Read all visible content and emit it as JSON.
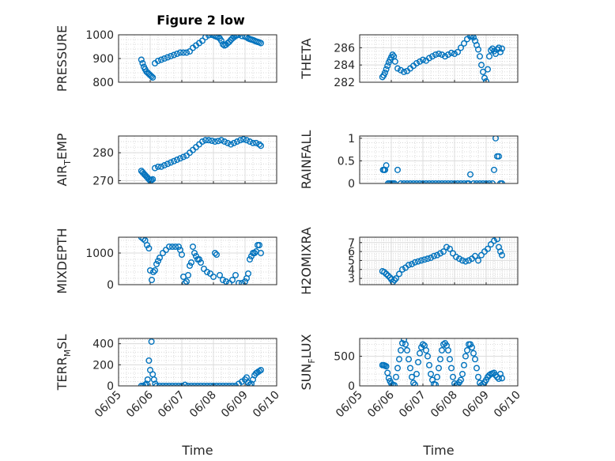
{
  "figure": {
    "title": "Figure 2 low"
  },
  "chart_data": [
    {
      "type": "scatter",
      "xlabel": "",
      "ylabel": "PRESSURE",
      "xlim": [
        "06/05",
        "06/10"
      ],
      "ylim": [
        800,
        1000
      ],
      "yticks": [
        800,
        900,
        1000
      ],
      "yticklabels": [
        "800",
        "900",
        "1000"
      ],
      "xticks": [
        "06/05",
        "06/06",
        "06/07",
        "06/08",
        "06/09",
        "06/10"
      ],
      "xticklabels": [],
      "grid": true,
      "minor_grid": true,
      "x": [
        0.72,
        0.76,
        0.8,
        0.84,
        0.88,
        0.92,
        0.96,
        1.0,
        1.04,
        1.08,
        1.15,
        1.25,
        1.35,
        1.45,
        1.55,
        1.65,
        1.75,
        1.85,
        1.95,
        2.05,
        2.15,
        2.25,
        2.35,
        2.45,
        2.55,
        2.65,
        2.75,
        2.85,
        2.95,
        3.0,
        3.05,
        3.1,
        3.15,
        3.2,
        3.25,
        3.3,
        3.35,
        3.4,
        3.45,
        3.5,
        3.55,
        3.6,
        3.65,
        3.7,
        3.75,
        3.8,
        3.9,
        4.0,
        4.05,
        4.1,
        4.15,
        4.2,
        4.25,
        4.3,
        4.35,
        4.4,
        4.45,
        4.5
      ],
      "y": [
        895,
        880,
        865,
        855,
        845,
        840,
        835,
        830,
        825,
        820,
        880,
        890,
        895,
        900,
        905,
        910,
        915,
        920,
        925,
        925,
        925,
        930,
        945,
        955,
        965,
        975,
        990,
        998,
        1000,
        998,
        995,
        992,
        990,
        985,
        975,
        960,
        955,
        958,
        965,
        970,
        978,
        985,
        990,
        995,
        998,
        1000,
        995,
        992,
        990,
        985,
        982,
        980,
        978,
        975,
        972,
        970,
        968,
        965
      ]
    },
    {
      "type": "scatter",
      "xlabel": "",
      "ylabel": "THETA",
      "xlim": [
        "06/05",
        "06/10"
      ],
      "ylim": [
        282,
        287.5
      ],
      "yticks": [
        282,
        284,
        286
      ],
      "yticklabels": [
        "282",
        "284",
        "286"
      ],
      "xticks": [
        "06/05",
        "06/06",
        "06/07",
        "06/08",
        "06/09",
        "06/10"
      ],
      "xticklabels": [],
      "grid": true,
      "minor_grid": true,
      "x": [
        0.72,
        0.76,
        0.8,
        0.84,
        0.88,
        0.92,
        0.96,
        1.0,
        1.04,
        1.08,
        1.12,
        1.2,
        1.3,
        1.4,
        1.5,
        1.6,
        1.7,
        1.8,
        1.9,
        2.0,
        2.1,
        2.2,
        2.3,
        2.4,
        2.5,
        2.6,
        2.7,
        2.8,
        2.9,
        3.0,
        3.1,
        3.2,
        3.3,
        3.4,
        3.5,
        3.55,
        3.6,
        3.65,
        3.7,
        3.75,
        3.8,
        3.85,
        3.9,
        3.95,
        4.0,
        4.05,
        4.1,
        4.15,
        4.2,
        4.25,
        4.3,
        4.35,
        4.4,
        4.45,
        4.5
      ],
      "y": [
        282.6,
        282.8,
        283.1,
        283.5,
        283.9,
        284.3,
        284.6,
        284.9,
        285.2,
        285.0,
        284.4,
        283.6,
        283.4,
        283.2,
        283.3,
        283.6,
        283.9,
        284.2,
        284.4,
        284.6,
        284.5,
        284.8,
        285.0,
        285.2,
        285.3,
        285.2,
        285.0,
        285.2,
        285.4,
        285.3,
        285.5,
        286.0,
        286.5,
        287.0,
        287.3,
        287.4,
        287.2,
        286.8,
        286.3,
        285.8,
        285.0,
        284.0,
        283.2,
        282.5,
        282.1,
        283.5,
        285.0,
        285.7,
        285.9,
        285.6,
        285.3,
        285.8,
        286.0,
        285.5,
        285.9
      ]
    },
    {
      "type": "scatter",
      "xlabel": "",
      "ylabel": "AIR_TEMP",
      "xlim": [
        "06/05",
        "06/10"
      ],
      "ylim": [
        269,
        286
      ],
      "yticks": [
        270,
        280
      ],
      "yticklabels": [
        "270",
        "280"
      ],
      "xticks": [
        "06/05",
        "06/06",
        "06/07",
        "06/08",
        "06/09",
        "06/10"
      ],
      "xticklabels": [],
      "grid": true,
      "minor_grid": true,
      "x": [
        0.72,
        0.76,
        0.8,
        0.84,
        0.88,
        0.92,
        0.96,
        1.0,
        1.04,
        1.08,
        1.15,
        1.25,
        1.35,
        1.45,
        1.55,
        1.65,
        1.75,
        1.85,
        1.95,
        2.05,
        2.15,
        2.25,
        2.35,
        2.45,
        2.55,
        2.65,
        2.75,
        2.85,
        2.95,
        3.05,
        3.15,
        3.25,
        3.35,
        3.45,
        3.55,
        3.65,
        3.75,
        3.85,
        3.95,
        4.05,
        4.15,
        4.25,
        4.35,
        4.45,
        4.5
      ],
      "y": [
        273.5,
        273.0,
        272.5,
        272.0,
        271.5,
        271.0,
        270.5,
        270.0,
        270.2,
        270.5,
        274.5,
        275.0,
        275.0,
        275.5,
        276.0,
        276.5,
        277.0,
        277.5,
        278.0,
        278.5,
        279.0,
        280.0,
        281.0,
        282.0,
        283.0,
        284.0,
        284.5,
        284.5,
        284.3,
        284.0,
        284.2,
        284.5,
        284.0,
        283.5,
        283.0,
        283.5,
        284.0,
        284.5,
        284.8,
        284.5,
        284.0,
        283.5,
        283.5,
        283.0,
        282.5
      ]
    },
    {
      "type": "scatter",
      "xlabel": "",
      "ylabel": "RAINFALL",
      "xlim": [
        "06/05",
        "06/10"
      ],
      "ylim": [
        0,
        1.05
      ],
      "yticks": [
        0,
        0.5,
        1
      ],
      "yticklabels": [
        "0",
        "0.5",
        "1"
      ],
      "xticks": [
        "06/05",
        "06/06",
        "06/07",
        "06/08",
        "06/09",
        "06/10"
      ],
      "xticklabels": [],
      "grid": true,
      "minor_grid": true,
      "x": [
        0.74,
        0.78,
        0.8,
        0.84,
        0.9,
        0.95,
        1.0,
        1.05,
        1.1,
        1.2,
        1.3,
        1.4,
        1.5,
        1.6,
        1.7,
        1.8,
        1.9,
        2.0,
        2.1,
        2.2,
        2.3,
        2.4,
        2.5,
        2.6,
        2.7,
        2.8,
        2.9,
        3.0,
        3.1,
        3.2,
        3.3,
        3.4,
        3.45,
        3.5,
        3.6,
        3.7,
        3.8,
        3.9,
        4.0,
        4.1,
        4.2,
        4.25,
        4.3,
        4.35,
        4.4,
        4.45,
        4.5
      ],
      "y": [
        0.3,
        0.3,
        0.3,
        0.4,
        0,
        0,
        0,
        0,
        0,
        0.3,
        0,
        0,
        0,
        0,
        0,
        0,
        0,
        0,
        0,
        0,
        0,
        0,
        0,
        0,
        0,
        0,
        0,
        0,
        0,
        0,
        0,
        0,
        0,
        0.2,
        0,
        0,
        0,
        0,
        0,
        0,
        0,
        0.3,
        1.0,
        0.6,
        0.6,
        0,
        0
      ]
    },
    {
      "type": "scatter",
      "xlabel": "",
      "ylabel": "MIXDEPTH",
      "xlim": [
        "06/05",
        "06/10"
      ],
      "ylim": [
        0,
        1500
      ],
      "yticks": [
        0,
        1000
      ],
      "yticklabels": [
        "0",
        "1000"
      ],
      "xticks": [
        "06/05",
        "06/06",
        "06/07",
        "06/08",
        "06/09",
        "06/10"
      ],
      "xticklabels": [],
      "grid": true,
      "minor_grid": true,
      "x": [
        0.72,
        0.78,
        0.84,
        0.9,
        0.96,
        1.0,
        1.05,
        1.1,
        1.15,
        1.2,
        1.25,
        1.3,
        1.4,
        1.5,
        1.6,
        1.7,
        1.8,
        1.9,
        1.95,
        2.0,
        2.05,
        2.1,
        2.15,
        2.2,
        2.25,
        2.3,
        2.35,
        2.4,
        2.45,
        2.5,
        2.55,
        2.6,
        2.7,
        2.8,
        2.9,
        3.0,
        3.05,
        3.1,
        3.2,
        3.3,
        3.4,
        3.5,
        3.6,
        3.7,
        3.8,
        3.9,
        4.0,
        4.05,
        4.1,
        4.15,
        4.2,
        4.25,
        4.3,
        4.35,
        4.4,
        4.45,
        4.5
      ],
      "y": [
        1500,
        1450,
        1400,
        1250,
        1150,
        450,
        150,
        400,
        450,
        650,
        750,
        850,
        1000,
        1100,
        1200,
        1200,
        1200,
        1200,
        1100,
        950,
        250,
        50,
        100,
        300,
        600,
        700,
        1200,
        1000,
        900,
        800,
        800,
        700,
        500,
        400,
        350,
        250,
        1000,
        950,
        300,
        150,
        100,
        50,
        150,
        300,
        50,
        50,
        100,
        200,
        350,
        800,
        900,
        1000,
        1000,
        1050,
        1250,
        1250,
        1000
      ]
    },
    {
      "type": "scatter",
      "xlabel": "",
      "ylabel": "H2OMIXRA",
      "xlim": [
        "06/05",
        "06/10"
      ],
      "ylim": [
        2.3,
        7.6
      ],
      "yticks": [
        3,
        4,
        5,
        6,
        7
      ],
      "yticklabels": [
        "3",
        "4",
        "5",
        "6",
        "7"
      ],
      "xticks": [
        "06/05",
        "06/06",
        "06/07",
        "06/08",
        "06/09",
        "06/10"
      ],
      "xticklabels": [],
      "grid": true,
      "minor_grid": true,
      "x": [
        0.72,
        0.78,
        0.84,
        0.9,
        0.96,
        1.0,
        1.05,
        1.1,
        1.15,
        1.25,
        1.35,
        1.45,
        1.55,
        1.65,
        1.75,
        1.85,
        1.95,
        2.05,
        2.15,
        2.25,
        2.35,
        2.45,
        2.55,
        2.65,
        2.75,
        2.85,
        2.95,
        3.05,
        3.15,
        3.25,
        3.35,
        3.45,
        3.55,
        3.65,
        3.75,
        3.85,
        3.95,
        4.05,
        4.15,
        4.25,
        4.35,
        4.4,
        4.45,
        4.5
      ],
      "y": [
        3.8,
        3.7,
        3.5,
        3.3,
        3.1,
        2.9,
        2.6,
        2.8,
        3.0,
        3.5,
        4.0,
        4.2,
        4.5,
        4.6,
        4.8,
        4.9,
        5.0,
        5.1,
        5.2,
        5.3,
        5.5,
        5.6,
        5.8,
        6.0,
        6.5,
        6.3,
        5.8,
        5.4,
        5.2,
        5.0,
        4.9,
        5.0,
        5.2,
        5.5,
        5.0,
        5.6,
        6.0,
        6.3,
        6.8,
        7.2,
        7.4,
        6.5,
        6.0,
        5.6
      ]
    },
    {
      "type": "scatter",
      "xlabel": "Time",
      "ylabel": "TERR_MSL",
      "xlim": [
        "06/05",
        "06/10"
      ],
      "ylim": [
        0,
        450
      ],
      "yticks": [
        0,
        200,
        400
      ],
      "yticklabels": [
        "0",
        "200",
        "400"
      ],
      "xticks": [
        "06/05",
        "06/06",
        "06/07",
        "06/08",
        "06/09",
        "06/10"
      ],
      "xticklabels": [
        "06/05",
        "06/06",
        "06/07",
        "06/08",
        "06/09",
        "06/10"
      ],
      "grid": true,
      "minor_grid": true,
      "x": [
        0.72,
        0.78,
        0.84,
        0.88,
        0.92,
        0.96,
        1.0,
        1.04,
        1.08,
        1.12,
        1.16,
        1.2,
        1.3,
        1.4,
        1.5,
        1.6,
        1.7,
        1.8,
        1.9,
        2.0,
        2.1,
        2.2,
        2.3,
        2.4,
        2.5,
        2.6,
        2.7,
        2.8,
        2.9,
        3.0,
        3.1,
        3.2,
        3.3,
        3.4,
        3.5,
        3.6,
        3.7,
        3.8,
        3.9,
        4.0,
        4.05,
        4.1,
        4.15,
        4.2,
        4.25,
        4.3,
        4.35,
        4.4,
        4.45,
        4.5
      ],
      "y": [
        0,
        0,
        10,
        20,
        60,
        240,
        150,
        420,
        110,
        60,
        20,
        0,
        0,
        0,
        0,
        0,
        0,
        0,
        0,
        0,
        10,
        0,
        0,
        0,
        0,
        0,
        0,
        0,
        0,
        0,
        0,
        0,
        0,
        0,
        0,
        0,
        0,
        20,
        40,
        60,
        80,
        30,
        10,
        20,
        60,
        100,
        120,
        130,
        140,
        150
      ]
    },
    {
      "type": "scatter",
      "xlabel": "Time",
      "ylabel": "SUN_FLUX",
      "xlim": [
        "06/05",
        "06/10"
      ],
      "ylim": [
        0,
        800
      ],
      "yticks": [
        0,
        500
      ],
      "yticklabels": [
        "0",
        "500"
      ],
      "xticks": [
        "06/05",
        "06/06",
        "06/07",
        "06/08",
        "06/09",
        "06/10"
      ],
      "xticklabels": [
        "06/05",
        "06/06",
        "06/07",
        "06/08",
        "06/09",
        "06/10"
      ],
      "grid": true,
      "minor_grid": true,
      "x": [
        0.72,
        0.76,
        0.8,
        0.84,
        0.88,
        0.92,
        0.96,
        1.0,
        1.05,
        1.1,
        1.15,
        1.2,
        1.25,
        1.3,
        1.35,
        1.4,
        1.45,
        1.5,
        1.55,
        1.6,
        1.65,
        1.7,
        1.75,
        1.8,
        1.85,
        1.9,
        1.95,
        2.0,
        2.05,
        2.1,
        2.15,
        2.2,
        2.25,
        2.3,
        2.35,
        2.4,
        2.45,
        2.5,
        2.55,
        2.6,
        2.65,
        2.7,
        2.75,
        2.8,
        2.85,
        2.9,
        2.95,
        3.0,
        3.05,
        3.1,
        3.15,
        3.2,
        3.25,
        3.3,
        3.35,
        3.4,
        3.45,
        3.5,
        3.55,
        3.6,
        3.65,
        3.7,
        3.75,
        3.8,
        3.85,
        3.9,
        3.95,
        4.0,
        4.05,
        4.1,
        4.15,
        4.2,
        4.25,
        4.3,
        4.35,
        4.4,
        4.45,
        4.5
      ],
      "y": [
        350,
        350,
        340,
        330,
        220,
        130,
        80,
        40,
        20,
        10,
        150,
        300,
        450,
        600,
        720,
        780,
        700,
        600,
        450,
        300,
        150,
        50,
        20,
        200,
        400,
        550,
        650,
        700,
        680,
        600,
        500,
        350,
        200,
        100,
        30,
        20,
        150,
        300,
        450,
        600,
        700,
        720,
        680,
        600,
        450,
        300,
        150,
        40,
        10,
        20,
        60,
        100,
        200,
        350,
        500,
        600,
        700,
        700,
        650,
        550,
        450,
        300,
        150,
        50,
        10,
        30,
        60,
        100,
        150,
        180,
        200,
        210,
        220,
        180,
        150,
        120,
        200,
        130
      ]
    }
  ]
}
